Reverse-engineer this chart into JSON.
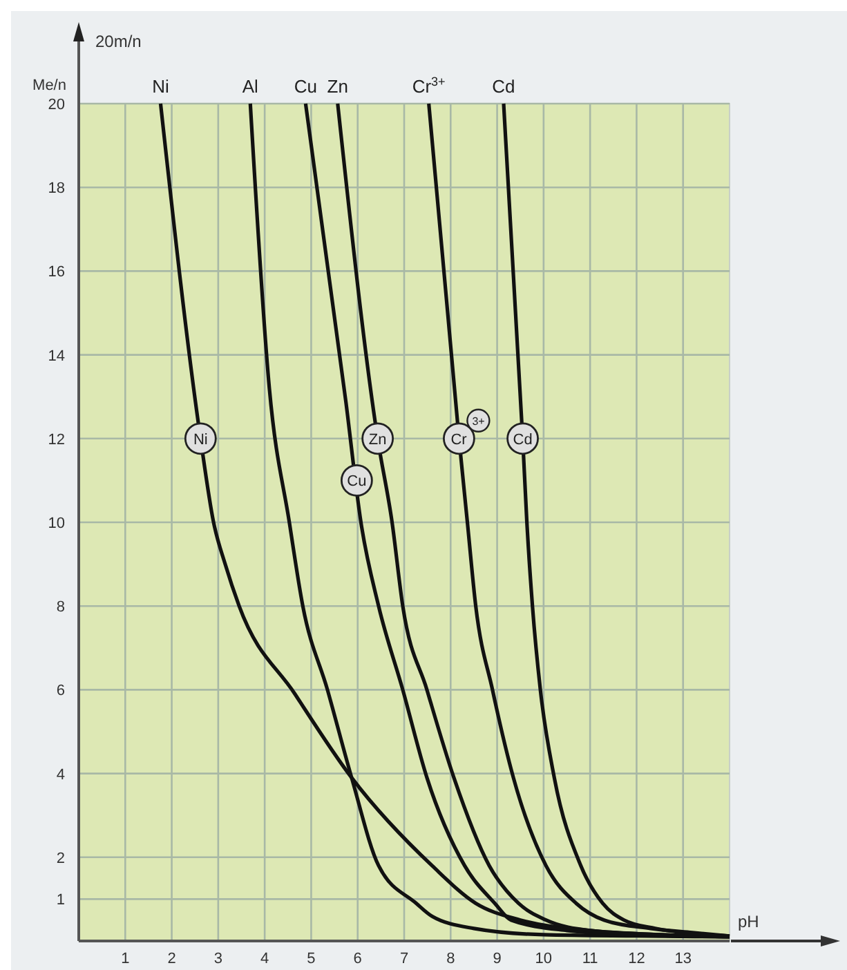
{
  "chart_data": {
    "type": "line",
    "xlabel": "pH",
    "ylabel": "Me/n",
    "xlim": [
      0,
      14
    ],
    "ylim": [
      0,
      20
    ],
    "xticks": [
      1,
      2,
      3,
      4,
      5,
      6,
      7,
      8,
      9,
      10,
      11,
      12,
      13
    ],
    "yticks": [
      1,
      2,
      4,
      6,
      8,
      10,
      12,
      14,
      16,
      18,
      20
    ],
    "grid": true,
    "marker": "none",
    "line_style": "solid",
    "series": [
      {
        "color": "#111111",
        "x": [
          1.76,
          2.62,
          2.9,
          3.15,
          3.45,
          4.65,
          5.87,
          7.6,
          8.54,
          9.5,
          11,
          12.5,
          14
        ],
        "values": [
          20,
          12,
          10,
          9,
          8,
          5.9,
          3.9,
          1.8,
          0.9,
          0.5,
          0.25,
          0.15,
          0.1
        ]
      },
      {
        "color": "#111111",
        "x": [
          3.69,
          4.1,
          4.53,
          4.82,
          5.35,
          5.87,
          6.45,
          7.26,
          7.6,
          8.5,
          10,
          12,
          14
        ],
        "values": [
          20,
          13.2,
          10,
          8,
          6,
          3.9,
          1.8,
          0.9,
          0.59,
          0.3,
          0.15,
          0.12,
          0.1
        ]
      },
      {
        "color": "#111111",
        "x": [
          4.88,
          5.75,
          6.07,
          6.45,
          6.97,
          7.49,
          8.3,
          8.95,
          9.3,
          10.5,
          12,
          14
        ],
        "values": [
          20,
          12.85,
          10,
          8,
          6,
          3.9,
          1.8,
          0.9,
          0.5,
          0.25,
          0.15,
          0.1
        ]
      },
      {
        "color": "#111111",
        "x": [
          5.57,
          6.43,
          6.74,
          6.97,
          7.49,
          8.07,
          8.83,
          9.46,
          10.05,
          11,
          12.5,
          14
        ],
        "values": [
          20,
          12,
          10,
          8,
          6,
          3.9,
          1.8,
          0.9,
          0.5,
          0.25,
          0.15,
          0.1
        ]
      },
      {
        "color": "#111111",
        "x": [
          7.53,
          8.18,
          8.36,
          8.54,
          8.9,
          9.35,
          10.05,
          10.7,
          11.3,
          12.3,
          13.2,
          14
        ],
        "values": [
          20,
          12,
          10,
          8,
          6,
          3.9,
          1.8,
          0.9,
          0.5,
          0.3,
          0.2,
          0.12
        ]
      },
      {
        "color": "#111111",
        "x": [
          9.14,
          9.55,
          9.64,
          9.76,
          9.93,
          10.23,
          10.8,
          11.27,
          11.73,
          12.4,
          13,
          14
        ],
        "values": [
          20,
          12,
          10,
          8,
          6,
          3.9,
          1.8,
          0.9,
          0.5,
          0.3,
          0.2,
          0.12
        ]
      }
    ],
    "annotations": [
      "20m/n",
      {
        "text": "Ni",
        "x": 1.76,
        "y": 20
      },
      {
        "text": "Al",
        "x": 3.69,
        "y": 20
      },
      {
        "text": "Cu",
        "x": 4.88,
        "y": 20
      },
      {
        "text": "Zn",
        "x": 5.57,
        "y": 20
      },
      {
        "text": "Cr$^{3+}$",
        "x": 7.53,
        "y": 20
      },
      {
        "text": "Cd",
        "x": 9.14,
        "y": 20
      },
      {
        "text": "Ni",
        "x": 2.62,
        "y": 12
      },
      {
        "text": "Cu",
        "x": 5.98,
        "y": 11
      },
      {
        "text": "Zn",
        "x": 6.43,
        "y": 12
      },
      {
        "text": "Cr$^{3+}$",
        "x": 8.18,
        "y": 12
      },
      {
        "text": "Cd",
        "x": 9.55,
        "y": 12
      }
    ]
  }
}
